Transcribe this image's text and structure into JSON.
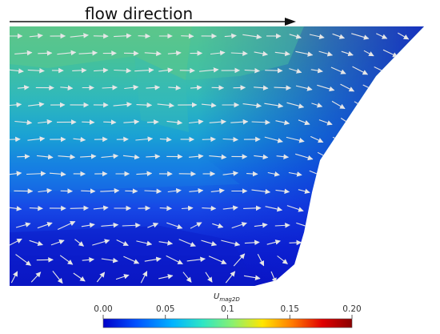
{
  "header": {
    "flow_label": "flow direction"
  },
  "colorbar": {
    "title_main": "U",
    "title_sub": "mag2D",
    "ticks": [
      "0.00",
      "0.05",
      "0.1",
      "0.15",
      "0.20"
    ],
    "tick_values": [
      0.0,
      0.05,
      0.1,
      0.15,
      0.2
    ],
    "range": [
      0.0,
      0.2
    ],
    "colormap": "jet",
    "colors": [
      "#0000c8",
      "#0050ff",
      "#00b4ff",
      "#2ee6c4",
      "#8af070",
      "#ffe600",
      "#ff7a00",
      "#e00000",
      "#8a0000"
    ]
  },
  "field": {
    "description_colors": {
      "high_speed": "#56c48c",
      "mid_speed": "#2bb6c6",
      "low_speed": "#1c3ae0",
      "lowest_speed": "#0a14c8"
    },
    "arrow_color": "#e6e6e6"
  }
}
